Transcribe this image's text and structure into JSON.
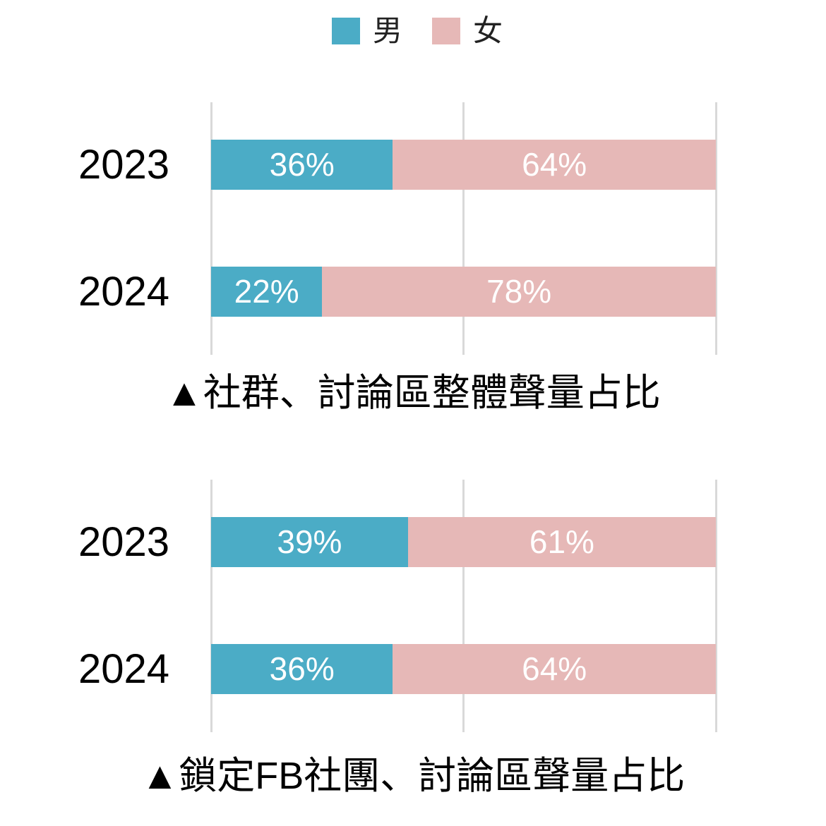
{
  "legend": {
    "position": "top",
    "entries": [
      {
        "label": "男",
        "color": "#4BACC6"
      },
      {
        "label": "女",
        "color": "#E6B8B7"
      }
    ]
  },
  "chart_data": [
    {
      "type": "bar",
      "orientation": "horizontal",
      "stacked": true,
      "title": "▲社群、討論區整體聲量占比",
      "categories": [
        "2023",
        "2024"
      ],
      "series": [
        {
          "name": "男",
          "values": [
            36,
            22
          ],
          "labels": [
            "36%",
            "22%"
          ],
          "color": "#4BACC6"
        },
        {
          "name": "女",
          "values": [
            64,
            78
          ],
          "labels": [
            "64%",
            "78%"
          ],
          "color": "#E6B8B7"
        }
      ],
      "xlim": [
        0,
        100
      ],
      "gridlines_x": [
        0,
        50,
        100
      ],
      "grid": true,
      "legend": "top"
    },
    {
      "type": "bar",
      "orientation": "horizontal",
      "stacked": true,
      "title": "▲鎖定FB社團、討論區聲量占比",
      "categories": [
        "2023",
        "2024"
      ],
      "series": [
        {
          "name": "男",
          "values": [
            39,
            36
          ],
          "labels": [
            "39%",
            "36%"
          ],
          "color": "#4BACC6"
        },
        {
          "name": "女",
          "values": [
            61,
            64
          ],
          "labels": [
            "61%",
            "64%"
          ],
          "color": "#E6B8B7"
        }
      ],
      "xlim": [
        0,
        100
      ],
      "gridlines_x": [
        0,
        50,
        100
      ],
      "grid": true,
      "legend": "top"
    }
  ]
}
